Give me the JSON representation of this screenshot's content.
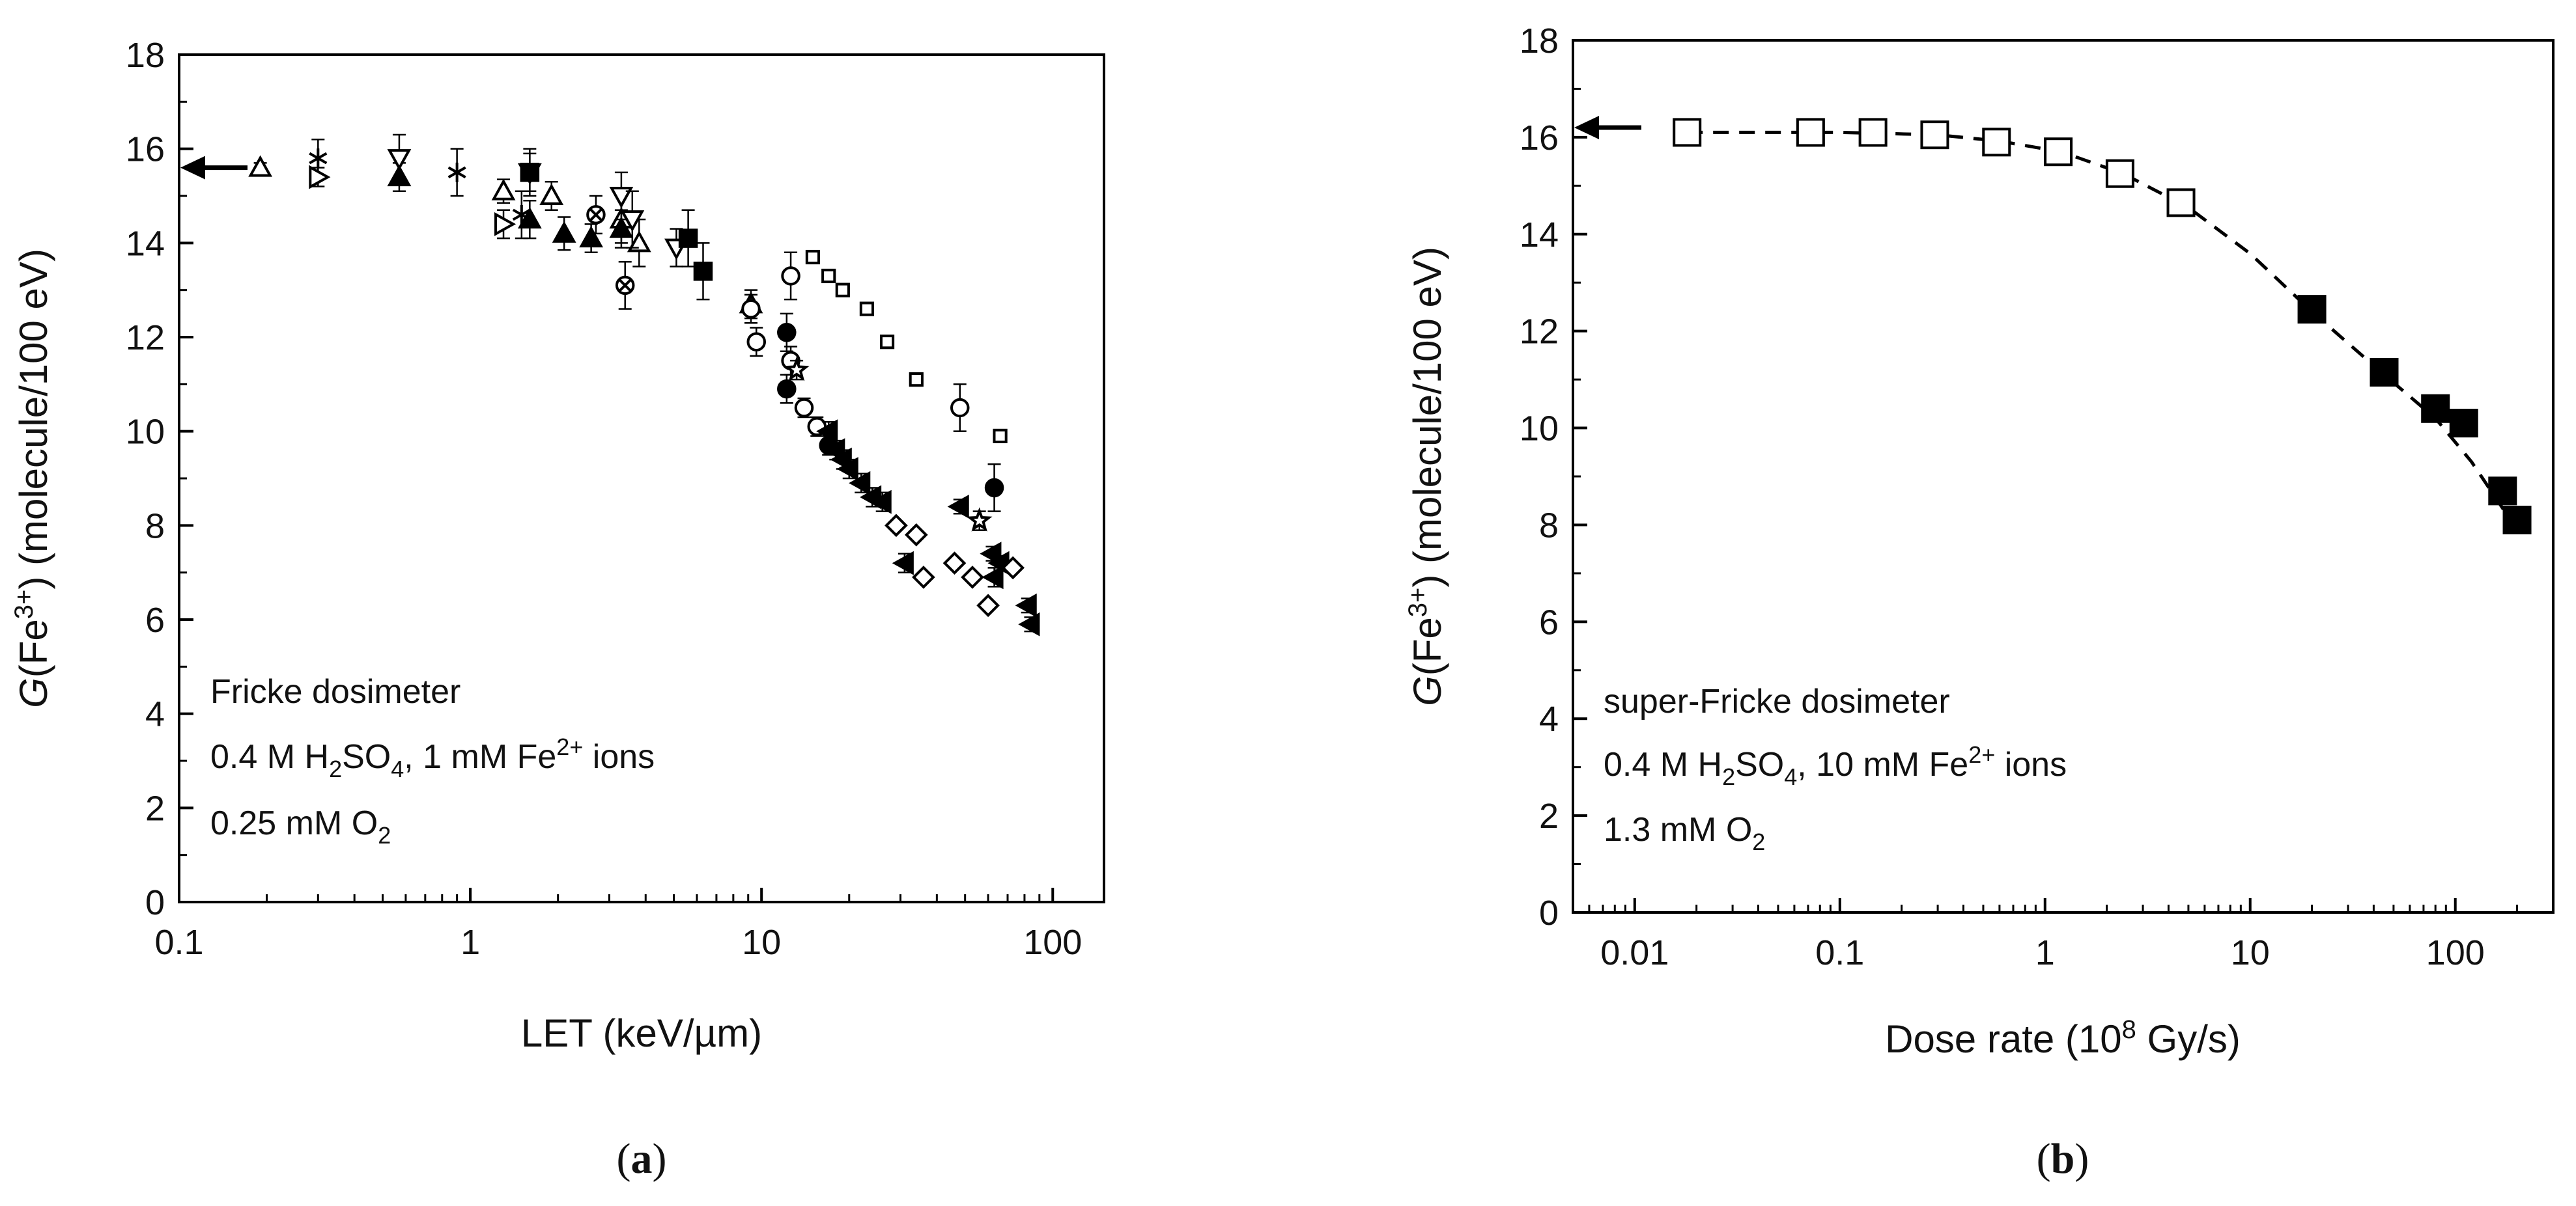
{
  "chart_data": [
    {
      "type": "scatter",
      "panel_label_letter": "a",
      "xscale": "log",
      "xlim": [
        0.1,
        150
      ],
      "ylim": [
        0,
        18
      ],
      "xlabel": "LET (keV/µm)",
      "ylabel_italic": "G",
      "ylabel_pre": "(Fe",
      "ylabel_sup": "3+",
      "ylabel_post": ") (molecule/100 eV)",
      "xticks": [
        0.1,
        1,
        10,
        100
      ],
      "xtick_labels": [
        "0.1",
        "1",
        "10",
        "100"
      ],
      "yticks": [
        0,
        2,
        4,
        6,
        8,
        10,
        12,
        14,
        16,
        18
      ],
      "ytick_labels": [
        "0",
        "2",
        "4",
        "6",
        "8",
        "10",
        "12",
        "14",
        "16",
        "18"
      ],
      "arrow_value": 15.6,
      "annotation": {
        "line1": "Fricke dosimeter",
        "line2": [
          {
            "t": "0.4 M H",
            "s": "n"
          },
          {
            "t": "2",
            "s": "sub"
          },
          {
            "t": "SO",
            "s": "n"
          },
          {
            "t": "4",
            "s": "sub"
          },
          {
            "t": ", 1 mM Fe",
            "s": "n"
          },
          {
            "t": "2+",
            "s": "sup"
          },
          {
            "t": " ions",
            "s": "n"
          }
        ],
        "line3": [
          {
            "t": "0.25 mM O",
            "s": "n"
          },
          {
            "t": "2",
            "s": "sub"
          }
        ]
      },
      "series": [
        {
          "name": "open-triangle",
          "marker": "tri-up-open",
          "points": [
            [
              0.19,
              15.6,
              0.1
            ],
            [
              1.3,
              15.1,
              0.25
            ],
            [
              1.9,
              15.0,
              0.3
            ],
            [
              3.3,
              14.5,
              0.5
            ],
            [
              3.8,
              14.0,
              0.5
            ],
            [
              9.2,
              12.7,
              0.3
            ]
          ]
        },
        {
          "name": "filled-triangle",
          "marker": "tri-up-filled",
          "points": [
            [
              0.57,
              15.4,
              0.3
            ],
            [
              1.6,
              14.5,
              0.4
            ],
            [
              2.1,
              14.2,
              0.35
            ],
            [
              2.6,
              14.1,
              0.3
            ],
            [
              3.3,
              14.3,
              0.4
            ]
          ]
        },
        {
          "name": "star-asterisk",
          "marker": "asterisk",
          "points": [
            [
              0.3,
              15.8,
              0.4
            ],
            [
              0.9,
              15.5,
              0.5
            ],
            [
              1.5,
              14.6,
              0.5
            ]
          ]
        },
        {
          "name": "open-down-triangle",
          "marker": "tri-down-open",
          "points": [
            [
              0.57,
              15.8,
              0.5
            ],
            [
              1.6,
              15.5,
              0.5
            ],
            [
              3.3,
              15.0,
              0.5
            ],
            [
              3.6,
              14.5,
              0.6
            ],
            [
              5.1,
              13.9,
              0.4
            ]
          ]
        },
        {
          "name": "open-right-triangle",
          "marker": "tri-right-open",
          "points": [
            [
              0.3,
              15.4,
              0.2
            ],
            [
              1.3,
              14.4,
              0.3
            ]
          ]
        },
        {
          "name": "crossed-circle",
          "marker": "circle-x",
          "points": [
            [
              2.7,
              14.6,
              0.4
            ],
            [
              3.4,
              13.1,
              0.5
            ]
          ]
        },
        {
          "name": "filled-square-low",
          "marker": "square-filled",
          "points": [
            [
              1.6,
              15.5,
              0.4
            ],
            [
              5.6,
              14.1,
              0.6
            ],
            [
              6.3,
              13.4,
              0.6
            ]
          ]
        },
        {
          "name": "open-circle",
          "marker": "circle-open",
          "points": [
            [
              9.2,
              12.6,
              0.3
            ],
            [
              9.6,
              11.9,
              0.3
            ],
            [
              12.6,
              13.3,
              0.5
            ],
            [
              12.6,
              11.5,
              0.3
            ],
            [
              14.0,
              10.5,
              0.2
            ],
            [
              15.5,
              10.1,
              0.2
            ],
            [
              48,
              10.5,
              0.5
            ]
          ]
        },
        {
          "name": "filled-circle",
          "marker": "circle-filled",
          "points": [
            [
              12.2,
              12.1,
              0.4
            ],
            [
              12.2,
              10.9,
              0.3
            ],
            [
              17.0,
              9.7,
              0.2
            ],
            [
              63,
              8.8,
              0.5
            ]
          ]
        },
        {
          "name": "open-star",
          "marker": "star-open",
          "points": [
            [
              13.2,
              11.3,
              0.2
            ],
            [
              56,
              8.1,
              0.2
            ]
          ]
        },
        {
          "name": "small-open-square",
          "marker": "square-open",
          "points": [
            [
              15,
              13.7,
              0
            ],
            [
              17,
              13.3,
              0
            ],
            [
              19,
              13.0,
              0
            ],
            [
              23,
              12.6,
              0
            ],
            [
              27,
              11.9,
              0
            ],
            [
              34,
              11.1,
              0
            ],
            [
              66,
              9.9,
              0
            ]
          ]
        },
        {
          "name": "left-triangle-filled",
          "marker": "tri-left-filled",
          "points": [
            [
              17,
              10.0,
              0.2
            ],
            [
              18,
              9.6,
              0.2
            ],
            [
              19,
              9.4,
              0.2
            ],
            [
              20,
              9.2,
              0.2
            ],
            [
              22,
              8.9,
              0.2
            ],
            [
              24,
              8.6,
              0.2
            ],
            [
              26,
              8.5,
              0.2
            ],
            [
              31,
              7.2,
              0.2
            ],
            [
              48,
              8.4,
              0.15
            ],
            [
              62,
              7.4,
              0.15
            ],
            [
              66,
              7.2,
              0.15
            ],
            [
              63,
              6.9,
              0.2
            ],
            [
              82,
              6.3,
              0.15
            ],
            [
              84,
              5.9,
              0.15
            ]
          ]
        },
        {
          "name": "open-diamond",
          "marker": "diamond-open",
          "points": [
            [
              29,
              8.0,
              0
            ],
            [
              34,
              7.8,
              0
            ],
            [
              36,
              6.9,
              0
            ],
            [
              46,
              7.2,
              0
            ],
            [
              53,
              6.9,
              0
            ],
            [
              60,
              6.3,
              0
            ],
            [
              73,
              7.1,
              0
            ]
          ]
        }
      ]
    },
    {
      "type": "line",
      "panel_label_letter": "b",
      "xscale": "log",
      "xlim": [
        0.005,
        300
      ],
      "ylim": [
        0,
        18
      ],
      "xlabel_pre": "Dose rate (10",
      "xlabel_sup": "8",
      "xlabel_post": " Gy/s)",
      "ylabel_italic": "G",
      "ylabel_pre": "(Fe",
      "ylabel_sup": "3+",
      "ylabel_post": ") (molecule/100 eV)",
      "xticks": [
        0.01,
        0.1,
        1,
        10,
        100
      ],
      "xtick_labels": [
        "0.01",
        "0.1",
        "1",
        "10",
        "100"
      ],
      "yticks": [
        0,
        2,
        4,
        6,
        8,
        10,
        12,
        14,
        16,
        18
      ],
      "ytick_labels": [
        "0",
        "2",
        "4",
        "6",
        "8",
        "10",
        "12",
        "14",
        "16",
        "18"
      ],
      "arrow_value": 16.2,
      "annotation": {
        "line1": "super-Fricke dosimeter",
        "line2": [
          {
            "t": "0.4 M H",
            "s": "n"
          },
          {
            "t": "2",
            "s": "sub"
          },
          {
            "t": "SO",
            "s": "n"
          },
          {
            "t": "4",
            "s": "sub"
          },
          {
            "t": ", 10 mM Fe",
            "s": "n"
          },
          {
            "t": "2+",
            "s": "sup"
          },
          {
            "t": " ions",
            "s": "n"
          }
        ],
        "line3": [
          {
            "t": "1.3 mM O",
            "s": "n"
          },
          {
            "t": "2",
            "s": "sub"
          }
        ]
      },
      "series": [
        {
          "name": "open-squares",
          "marker": "square-open-big",
          "points": [
            [
              0.018,
              16.1
            ],
            [
              0.072,
              16.1
            ],
            [
              0.145,
              16.1
            ],
            [
              0.29,
              16.05
            ],
            [
              0.58,
              15.9
            ],
            [
              1.16,
              15.7
            ],
            [
              2.32,
              15.25
            ],
            [
              4.6,
              14.65
            ]
          ]
        },
        {
          "name": "filled-squares",
          "marker": "square-filled-big",
          "points": [
            [
              20,
              12.45
            ],
            [
              45,
              11.15
            ],
            [
              80,
              10.4
            ],
            [
              110,
              10.1
            ],
            [
              170,
              8.7
            ],
            [
              200,
              8.1
            ]
          ]
        },
        {
          "name": "dashed-fit",
          "marker": "none",
          "points": [
            [
              0.018,
              16.1
            ],
            [
              0.1,
              16.1
            ],
            [
              0.3,
              16.05
            ],
            [
              0.6,
              15.92
            ],
            [
              1.2,
              15.7
            ],
            [
              2.4,
              15.25
            ],
            [
              5,
              14.55
            ],
            [
              10,
              13.6
            ],
            [
              20,
              12.4
            ],
            [
              45,
              11.1
            ],
            [
              80,
              10.2
            ],
            [
              120,
              9.3
            ],
            [
              200,
              7.9
            ]
          ]
        }
      ]
    }
  ]
}
